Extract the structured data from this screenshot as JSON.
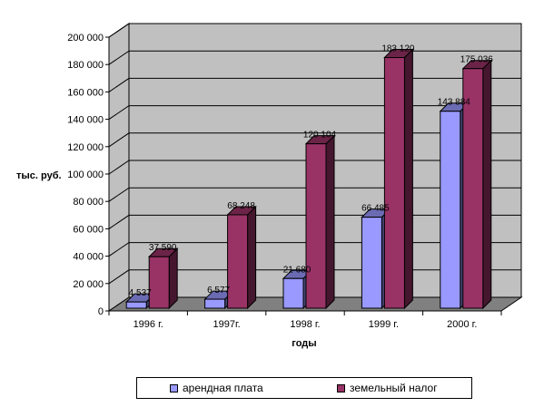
{
  "chart_data": {
    "type": "bar",
    "categories": [
      "1996 г.",
      "1997г.",
      "1998 г.",
      "1999 г.",
      "2000 г."
    ],
    "series": [
      {
        "name": "арендная плата",
        "values": [
          4537,
          6577,
          21680,
          66485,
          143884
        ],
        "labels": [
          "4 537",
          "6 577",
          "21 680",
          "66 485",
          "143 884"
        ],
        "color": "#9999ff"
      },
      {
        "name": "земельный налог",
        "values": [
          37590,
          68248,
          120104,
          183120,
          175036
        ],
        "labels": [
          "37 590",
          "68 248",
          "120 104",
          "183 120",
          "175 036"
        ],
        "color": "#993366"
      }
    ],
    "xlabel": "годы",
    "ylabel": "тыс. руб.",
    "ylim": [
      0,
      200000
    ],
    "yticks": [
      "0",
      "20 000",
      "40 000",
      "60 000",
      "80 000",
      "100 000",
      "120 000",
      "140 000",
      "160 000",
      "180 000",
      "200 000"
    ],
    "grid": true,
    "legend_position": "bottom",
    "wall_color": "#c0c0c0",
    "floor_color": "#808080"
  }
}
